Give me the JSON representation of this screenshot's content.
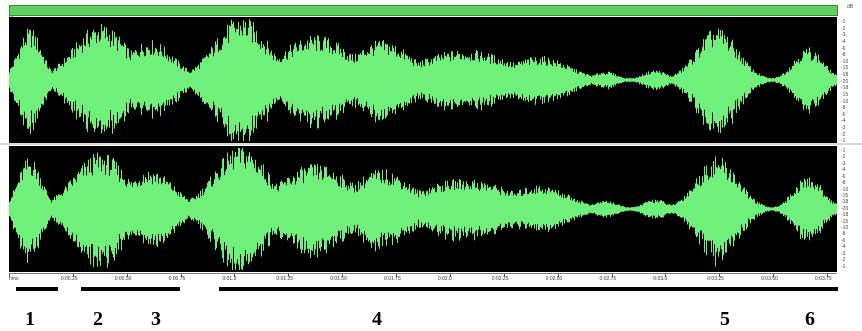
{
  "overview": {
    "color": "#5ed05e"
  },
  "waveform": {
    "color": "#6ef07a",
    "background": "#000000"
  },
  "db_ruler": {
    "unit": "dB",
    "labels": [
      "-1",
      "-2",
      "-3",
      "-4",
      "-6",
      "-8",
      "-10",
      "-15",
      "-18",
      "-20",
      "-18",
      "-15",
      "-10",
      "-8",
      "-6",
      "-4",
      "-3",
      "-2",
      "-1"
    ]
  },
  "timeline": {
    "labels": [
      "hms",
      "0:00.25",
      "0:00.50",
      "0:00.75",
      "0:01.0",
      "0:01.25",
      "0:01.50",
      "0:01.75",
      "0:02.0",
      "0:02.25",
      "0:02.50",
      "0:02.75",
      "0:03.0",
      "0:03.25",
      "0:03.50",
      "0:03.75"
    ]
  },
  "segments": [
    {
      "label": "1"
    },
    {
      "label": "2"
    },
    {
      "label": "3"
    },
    {
      "label": "4"
    },
    {
      "label": "5"
    },
    {
      "label": "6"
    }
  ]
}
